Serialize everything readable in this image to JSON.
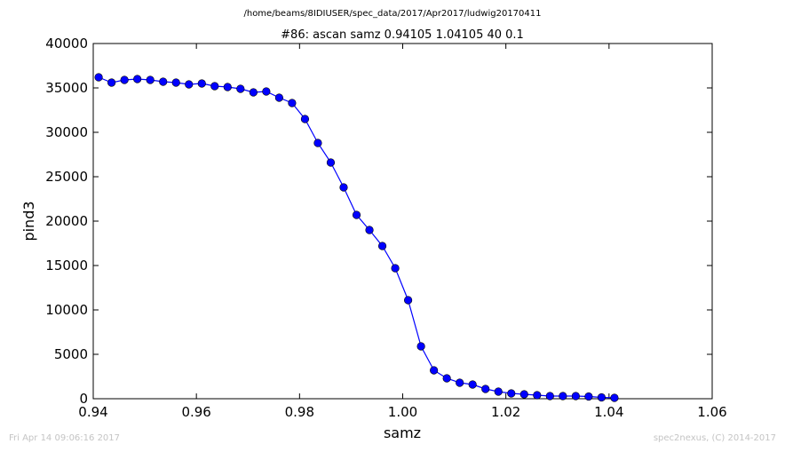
{
  "header": {
    "path": "/home/beams/8IDIUSER/spec_data/2017/Apr2017/ludwig20170411"
  },
  "footer": {
    "timestamp": "Fri Apr 14 09:06:16 2017",
    "credit": "spec2nexus, (C) 2014-2017"
  },
  "chart_data": {
    "type": "line",
    "title": "#86: ascan  samz 0.94105 1.04105  40 0.1",
    "xlabel": "samz",
    "ylabel": "pind3",
    "xlim": [
      0.94,
      1.06
    ],
    "ylim": [
      0,
      40000
    ],
    "xticks": [
      0.94,
      0.96,
      0.98,
      1.0,
      1.02,
      1.04,
      1.06
    ],
    "xtick_labels": [
      "0.94",
      "0.96",
      "0.98",
      "1.00",
      "1.02",
      "1.04",
      "1.06"
    ],
    "yticks": [
      0,
      5000,
      10000,
      15000,
      20000,
      25000,
      30000,
      35000,
      40000
    ],
    "ytick_labels": [
      "0",
      "5000",
      "10000",
      "15000",
      "20000",
      "25000",
      "30000",
      "35000",
      "40000"
    ],
    "grid": false,
    "colors": {
      "series": "#0000ff",
      "marker_edge": "#000000"
    },
    "series": [
      {
        "x": [
          0.94105,
          0.94355,
          0.94605,
          0.94855,
          0.95105,
          0.95355,
          0.95605,
          0.95855,
          0.96105,
          0.96355,
          0.96605,
          0.96855,
          0.97105,
          0.97355,
          0.97605,
          0.97855,
          0.98105,
          0.98355,
          0.98605,
          0.98855,
          0.99105,
          0.99355,
          0.99605,
          0.99855,
          1.00105,
          1.00355,
          1.00605,
          1.00855,
          1.01105,
          1.01355,
          1.01605,
          1.01855,
          1.02105,
          1.02355,
          1.02605,
          1.02855,
          1.03105,
          1.03355,
          1.03605,
          1.03855,
          1.04105
        ],
        "values": [
          36200,
          35600,
          35900,
          36000,
          35900,
          35700,
          35600,
          35400,
          35500,
          35200,
          35100,
          34900,
          34500,
          34600,
          33900,
          33300,
          31500,
          28800,
          26600,
          23800,
          20700,
          19000,
          17200,
          14700,
          11100,
          5900,
          3200,
          2300,
          1800,
          1600,
          1100,
          800,
          600,
          500,
          400,
          300,
          300,
          300,
          250,
          150,
          100
        ]
      }
    ]
  }
}
